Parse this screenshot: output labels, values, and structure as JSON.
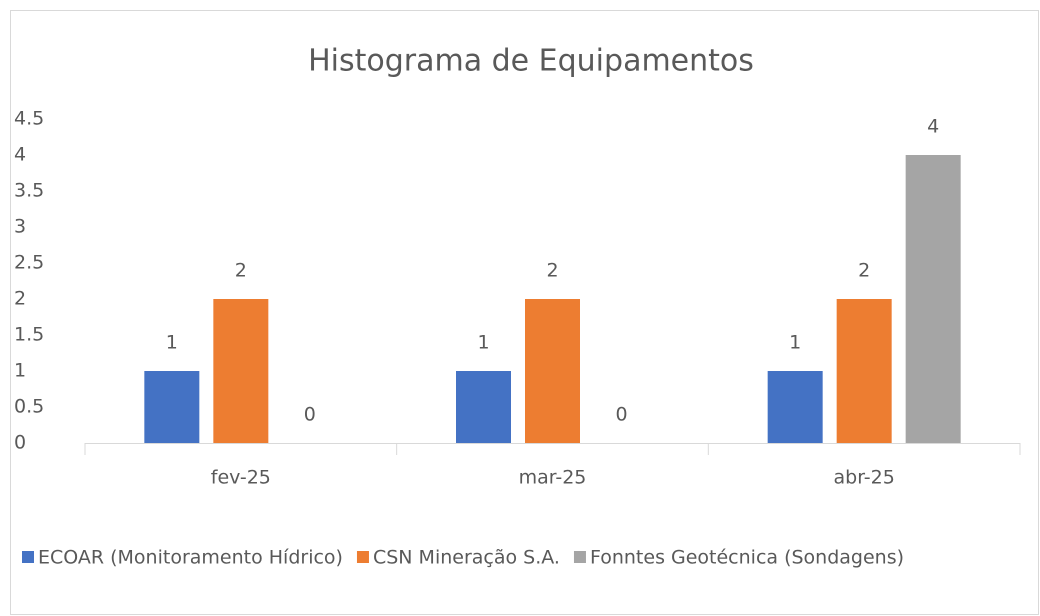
{
  "chart_data": {
    "type": "bar",
    "title": "Histograma de Equipamentos",
    "categories": [
      "fev-25",
      "mar-25",
      "abr-25"
    ],
    "series": [
      {
        "name": "ECOAR (Monitoramento Hídrico)",
        "color": "#4472c4",
        "values": [
          1,
          1,
          1
        ]
      },
      {
        "name": "CSN Mineração S.A.",
        "color": "#ed7d31",
        "values": [
          2,
          2,
          2
        ]
      },
      {
        "name": "Fonntes Geotécnica (Sondagens)",
        "color": "#a5a5a5",
        "values": [
          0,
          0,
          4
        ]
      }
    ],
    "ylim": [
      0,
      4.5
    ],
    "yticks": [
      0,
      0.5,
      1,
      1.5,
      2,
      2.5,
      3,
      3.5,
      4,
      4.5
    ],
    "grid": false,
    "legend": "bottom"
  }
}
